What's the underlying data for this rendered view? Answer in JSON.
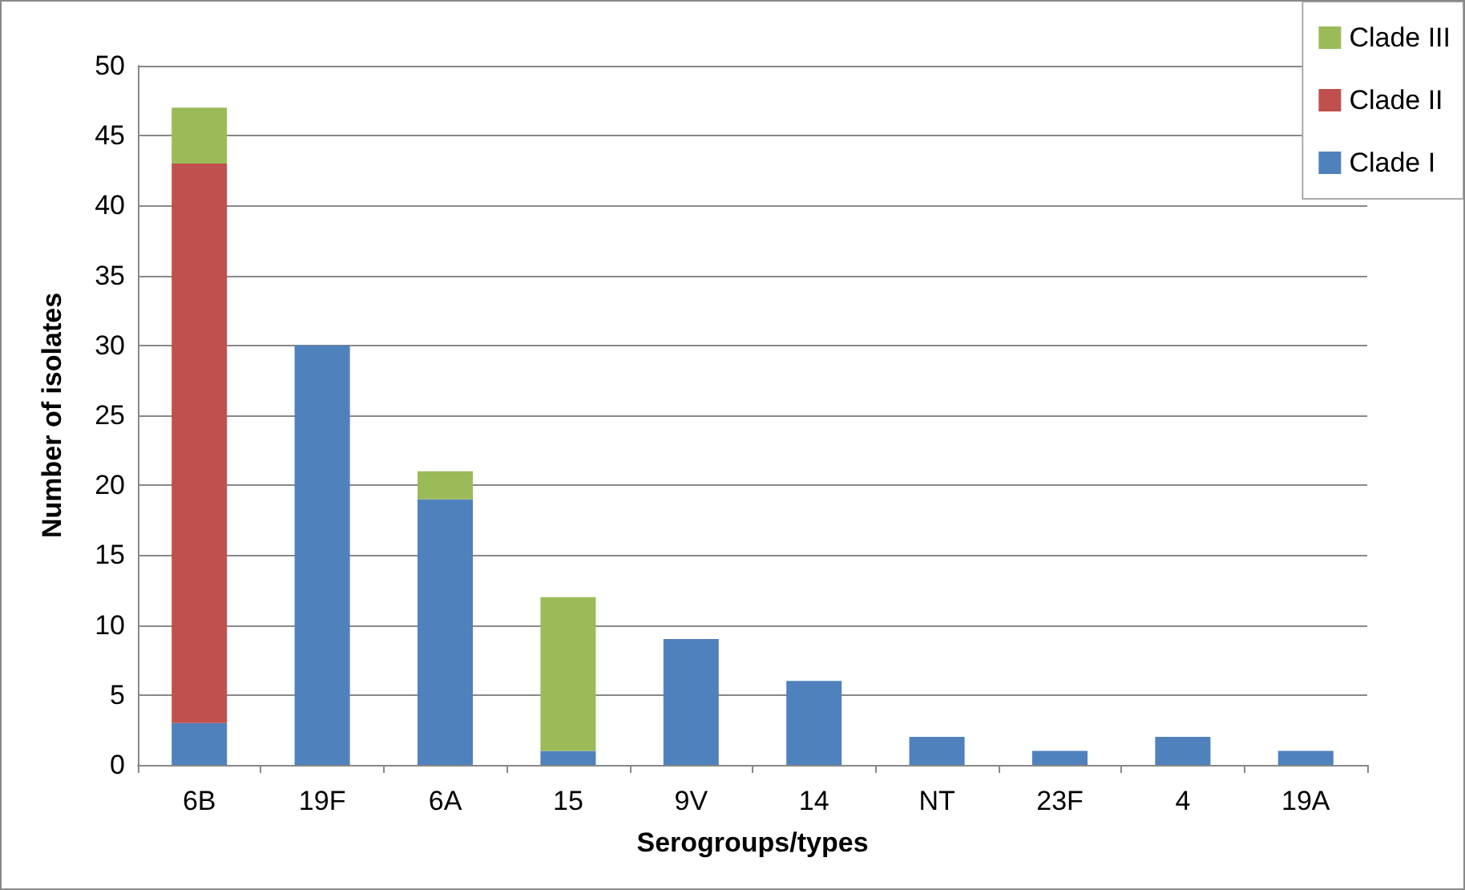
{
  "chart_data": {
    "type": "bar",
    "stacked": true,
    "xlabel": "Serogroups/types",
    "ylabel": "Number of isolates",
    "categories": [
      "6B",
      "19F",
      "6A",
      "15",
      "9V",
      "14",
      "NT",
      "23F",
      "4",
      "19A"
    ],
    "series": [
      {
        "name": "Clade I",
        "color": "#4f81bd",
        "values": [
          3,
          30,
          19,
          1,
          9,
          6,
          2,
          1,
          2,
          1
        ]
      },
      {
        "name": "Clade II",
        "color": "#c0504d",
        "values": [
          40,
          null,
          null,
          null,
          null,
          null,
          null,
          null,
          null,
          null
        ]
      },
      {
        "name": "Clade III",
        "color": "#9bbb59",
        "values": [
          4,
          null,
          2,
          11,
          null,
          null,
          null,
          null,
          null,
          null
        ]
      }
    ],
    "ylim": [
      0,
      50
    ],
    "yticks": [
      0,
      5,
      10,
      15,
      20,
      25,
      30,
      35,
      40,
      45,
      50
    ],
    "grid": "y",
    "legend": "top right"
  }
}
